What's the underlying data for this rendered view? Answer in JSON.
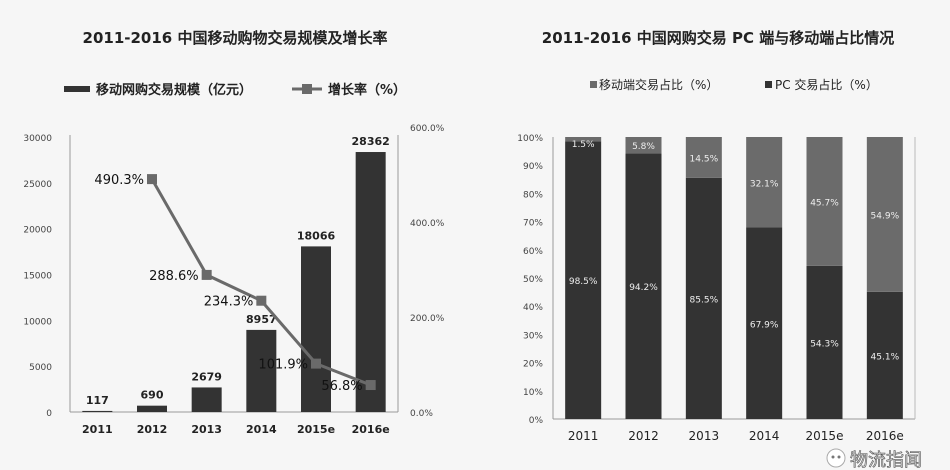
{
  "chart_data": [
    {
      "type": "bar",
      "title": "2011-2016 中国移动购物交易规模及增长率",
      "categories": [
        "2011",
        "2012",
        "2013",
        "2014",
        "2015e",
        "2016e"
      ],
      "series": [
        {
          "name": "移动网购交易规模（亿元）",
          "type": "bar",
          "axis": "left",
          "values": [
            117,
            690,
            2679,
            8957,
            18066,
            28362
          ],
          "labels": [
            "117",
            "690",
            "2679",
            "8957",
            "18066",
            "28362"
          ]
        },
        {
          "name": "增长率（%）",
          "type": "line",
          "axis": "right",
          "values": [
            null,
            490.3,
            288.6,
            234.3,
            101.9,
            56.8
          ],
          "labels": [
            "",
            "490.3%",
            "288.6%",
            "234.3%",
            "101.9%",
            "56.8%"
          ]
        }
      ],
      "ylim": [
        0,
        30000
      ],
      "yticks": [
        "0",
        "5000",
        "10000",
        "15000",
        "20000",
        "25000",
        "30000"
      ],
      "y2lim": [
        0,
        600
      ],
      "y2ticks": [
        "0.0%",
        "200.0%",
        "400.0%",
        "600.0%"
      ],
      "legend": "top",
      "grid": false,
      "colors": {
        "bar": "#333333",
        "line": "#6a6a6a"
      }
    },
    {
      "type": "bar",
      "stacked": true,
      "title": "2011-2016 中国网购交易 PC 端与移动端占比情况",
      "categories": [
        "2011",
        "2012",
        "2013",
        "2014",
        "2015e",
        "2016e"
      ],
      "series": [
        {
          "name": "移动端交易占比（%）",
          "values": [
            1.5,
            5.8,
            14.5,
            32.1,
            45.7,
            54.9
          ],
          "labels": [
            "1.5%",
            "5.8%",
            "14.5%",
            "32.1%",
            "45.7%",
            "54.9%"
          ]
        },
        {
          "name": "PC 交易占比（%）",
          "values": [
            98.5,
            94.2,
            85.5,
            67.9,
            54.3,
            45.1
          ],
          "labels": [
            "98.5%",
            "94.2%",
            "85.5%",
            "67.9%",
            "54.3%",
            "45.1%"
          ]
        }
      ],
      "ylim": [
        0,
        100
      ],
      "yticks": [
        "0%",
        "10%",
        "20%",
        "30%",
        "40%",
        "50%",
        "60%",
        "70%",
        "80%",
        "90%",
        "100%"
      ],
      "legend": "top",
      "grid": false,
      "colors": {
        "mobile": "#6b6b6b",
        "pc": "#333333"
      }
    }
  ],
  "watermark": {
    "text": "物流指闻",
    "icon": "wechat-icon"
  }
}
